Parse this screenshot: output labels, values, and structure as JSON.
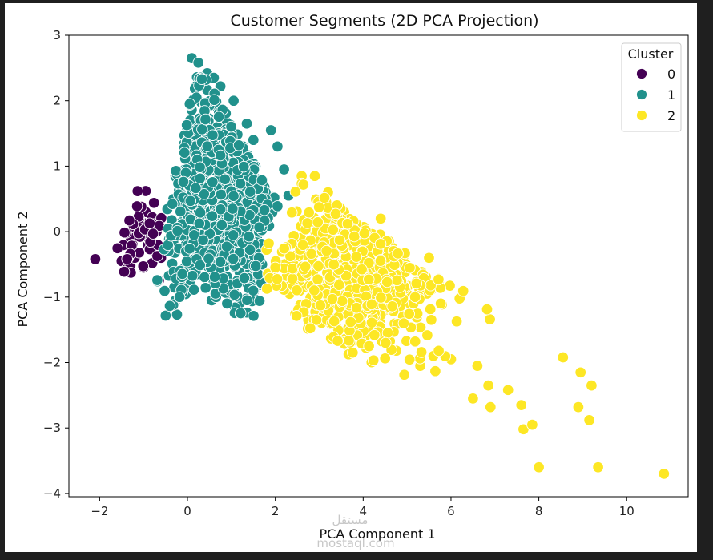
{
  "chart_data": {
    "type": "scatter",
    "title": "Customer Segments (2D PCA Projection)",
    "xlabel": "PCA Component 1",
    "ylabel": "PCA Component 2",
    "xlim": [
      -2.7,
      11.4
    ],
    "ylim": [
      -4.05,
      3.0
    ],
    "xticks": [
      -2,
      0,
      2,
      4,
      6,
      8,
      10
    ],
    "yticks": [
      -4,
      -3,
      -2,
      -1,
      0,
      1,
      2,
      3
    ],
    "xtick_labels": [
      "−2",
      "0",
      "2",
      "4",
      "6",
      "8",
      "10"
    ],
    "ytick_labels": [
      "−4",
      "−3",
      "−2",
      "−1",
      "0",
      "1",
      "2",
      "3"
    ],
    "grid": false,
    "legend": {
      "title": "Cluster",
      "placement": "top-right"
    },
    "series": [
      {
        "name": "0",
        "color": "#440154",
        "points": [
          [
            -2.1,
            -0.42
          ],
          [
            -1.5,
            -0.45
          ],
          [
            -1.4,
            -0.58
          ],
          [
            -1.3,
            -0.52
          ],
          [
            -1.2,
            -0.4
          ],
          [
            -1.3,
            -0.08
          ],
          [
            -1.2,
            0.06
          ],
          [
            -1.1,
            -0.32
          ],
          [
            -1.0,
            0.13
          ],
          [
            -0.95,
            0.3
          ],
          [
            -0.9,
            -0.2
          ],
          [
            -0.85,
            0.05
          ],
          [
            -1.0,
            -0.55
          ],
          [
            -0.8,
            -0.48
          ],
          [
            -0.75,
            -0.3
          ],
          [
            -0.95,
            0.62
          ],
          [
            -0.65,
            -0.75
          ],
          [
            -0.7,
            0.0
          ],
          [
            -1.1,
            0.2
          ],
          [
            -1.25,
            -0.2
          ],
          [
            -1.35,
            -0.4
          ],
          [
            -0.6,
            -0.4
          ],
          [
            -0.9,
            -0.1
          ],
          [
            -1.05,
            0.38
          ],
          [
            -0.8,
            0.22
          ]
        ],
        "cloud": {
          "center": [
            -1.0,
            -0.12
          ],
          "spread": [
            0.28,
            0.28
          ],
          "count": 30
        }
      },
      {
        "name": "1",
        "color": "#21918c",
        "points": [
          [
            0.1,
            2.65
          ],
          [
            0.25,
            2.58
          ],
          [
            0.45,
            2.42
          ],
          [
            0.6,
            2.35
          ],
          [
            0.75,
            2.22
          ],
          [
            1.05,
            2.0
          ],
          [
            1.35,
            1.65
          ],
          [
            1.5,
            1.4
          ],
          [
            1.9,
            1.55
          ],
          [
            2.05,
            1.3
          ],
          [
            2.2,
            0.95
          ],
          [
            2.3,
            0.55
          ],
          [
            -0.25,
            0.88
          ],
          [
            1.85,
            -0.75
          ],
          [
            0.55,
            -1.05
          ],
          [
            1.25,
            -1.25
          ],
          [
            -0.05,
            -0.82
          ],
          [
            1.05,
            -0.9
          ],
          [
            0.65,
            -1.0
          ],
          [
            1.7,
            -0.5
          ]
        ],
        "cloud": {
          "center": [
            0.8,
            0.6
          ],
          "spread": [
            0.6,
            0.7
          ],
          "count": 900
        }
      },
      {
        "name": "2",
        "color": "#fde725",
        "points": [
          [
            8.55,
            -1.92
          ],
          [
            8.95,
            -2.15
          ],
          [
            9.2,
            -2.35
          ],
          [
            8.9,
            -2.68
          ],
          [
            9.15,
            -2.88
          ],
          [
            7.65,
            -3.02
          ],
          [
            7.85,
            -2.95
          ],
          [
            8.0,
            -3.6
          ],
          [
            9.35,
            -3.6
          ],
          [
            10.85,
            -3.7
          ],
          [
            7.3,
            -2.42
          ],
          [
            7.6,
            -2.65
          ],
          [
            6.9,
            -2.68
          ],
          [
            6.5,
            -2.55
          ],
          [
            6.85,
            -2.35
          ],
          [
            5.5,
            -0.4
          ],
          [
            4.15,
            -0.05
          ],
          [
            4.4,
            0.2
          ],
          [
            2.9,
            0.85
          ],
          [
            2.6,
            0.85
          ],
          [
            3.2,
            0.6
          ],
          [
            5.6,
            -1.9
          ],
          [
            6.0,
            -1.95
          ],
          [
            6.6,
            -2.05
          ],
          [
            5.3,
            -2.05
          ]
        ],
        "cloud": {
          "center": [
            3.8,
            -0.6
          ],
          "spread": [
            0.85,
            0.55
          ],
          "count": 560
        }
      }
    ]
  },
  "watermark": {
    "arabic": "مستقل",
    "latin": "mostaql.com"
  }
}
